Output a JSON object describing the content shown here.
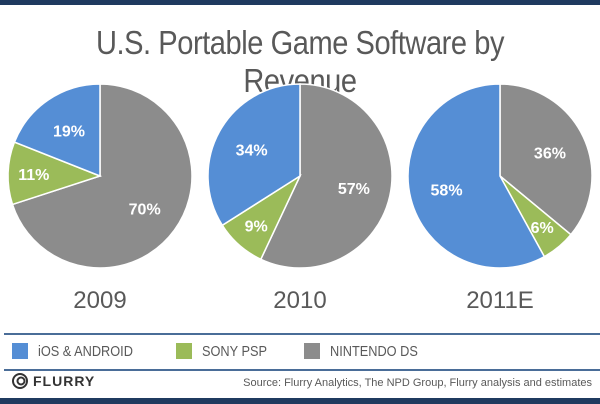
{
  "chart_data": {
    "type": "pie",
    "title": "U.S. Portable Game Software by Revenue",
    "legend": [
      "iOS & ANDROID",
      "SONY PSP",
      "NINTENDO DS"
    ],
    "colors": {
      "iOS & ANDROID": "#558ed5",
      "SONY PSP": "#9bbb59",
      "NINTENDO DS": "#8c8c8c"
    },
    "legend_position": "bottom",
    "pies": [
      {
        "label": "2009",
        "values": {
          "iOS & ANDROID": 19,
          "SONY PSP": 11,
          "NINTENDO DS": 70
        },
        "data_labels": {
          "iOS & ANDROID": "19%",
          "SONY PSP": "11%",
          "NINTENDO DS": "70%"
        }
      },
      {
        "label": "2010",
        "values": {
          "iOS & ANDROID": 34,
          "SONY PSP": 9,
          "NINTENDO DS": 57
        },
        "data_labels": {
          "iOS & ANDROID": "34%",
          "SONY PSP": "9%",
          "NINTENDO DS": "57%"
        }
      },
      {
        "label": "2011E",
        "values": {
          "iOS & ANDROID": 58,
          "SONY PSP": 6,
          "NINTENDO DS": 36
        },
        "data_labels": {
          "iOS & ANDROID": "58%",
          "SONY PSP": "6%",
          "NINTENDO DS": "36%"
        }
      }
    ]
  },
  "footer": {
    "logo_text": "FLURRY",
    "source": "Source: Flurry Analytics, The NPD Group, Flurry analysis  and estimates"
  }
}
